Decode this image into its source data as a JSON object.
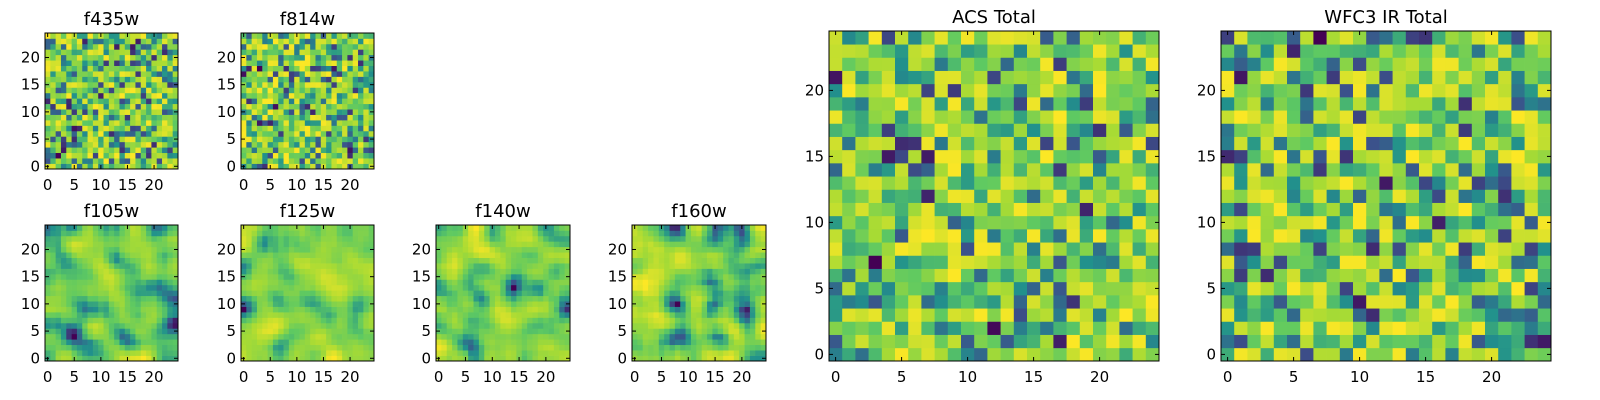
{
  "palette": [
    "#440154",
    "#3b528b",
    "#21918c",
    "#5ec962",
    "#a8db34",
    "#fde725"
  ],
  "chart_data": [
    {
      "id": "f435w",
      "type": "heatmap",
      "title": "f435w",
      "size": 25,
      "xticks": [
        0,
        5,
        10,
        15,
        20
      ],
      "yticks": [
        0,
        5,
        10,
        15,
        20
      ],
      "texture": "noise",
      "seed": 435
    },
    {
      "id": "f814w",
      "type": "heatmap",
      "title": "f814w",
      "size": 25,
      "xticks": [
        0,
        5,
        10,
        15,
        20
      ],
      "yticks": [
        0,
        5,
        10,
        15,
        20
      ],
      "texture": "noise",
      "seed": 814
    },
    {
      "id": "f105w",
      "type": "heatmap",
      "title": "f105w",
      "size": 25,
      "xticks": [
        0,
        5,
        10,
        15,
        20
      ],
      "yticks": [
        0,
        5,
        10,
        15,
        20
      ],
      "texture": "smooth",
      "seed": 105
    },
    {
      "id": "f125w",
      "type": "heatmap",
      "title": "f125w",
      "size": 25,
      "xticks": [
        0,
        5,
        10,
        15,
        20
      ],
      "yticks": [
        0,
        5,
        10,
        15,
        20
      ],
      "texture": "smooth",
      "seed": 125
    },
    {
      "id": "f140w",
      "type": "heatmap",
      "title": "f140w",
      "size": 25,
      "xticks": [
        0,
        5,
        10,
        15,
        20
      ],
      "yticks": [
        0,
        5,
        10,
        15,
        20
      ],
      "texture": "smooth",
      "seed": 140
    },
    {
      "id": "f160w",
      "type": "heatmap",
      "title": "f160w",
      "size": 25,
      "xticks": [
        0,
        5,
        10,
        15,
        20
      ],
      "yticks": [
        0,
        5,
        10,
        15,
        20
      ],
      "texture": "smooth",
      "seed": 160
    },
    {
      "id": "acs_total",
      "type": "heatmap",
      "title": "ACS Total",
      "size": 25,
      "xticks": [
        0,
        5,
        10,
        15,
        20
      ],
      "yticks": [
        0,
        5,
        10,
        15,
        20
      ],
      "texture": "noise",
      "seed": 1001
    },
    {
      "id": "wfc3_ir_total",
      "type": "heatmap",
      "title": "WFC3 IR Total",
      "size": 25,
      "xticks": [
        0,
        5,
        10,
        15,
        20
      ],
      "yticks": [
        0,
        5,
        10,
        15,
        20
      ],
      "texture": "noise",
      "seed": 2002
    }
  ]
}
